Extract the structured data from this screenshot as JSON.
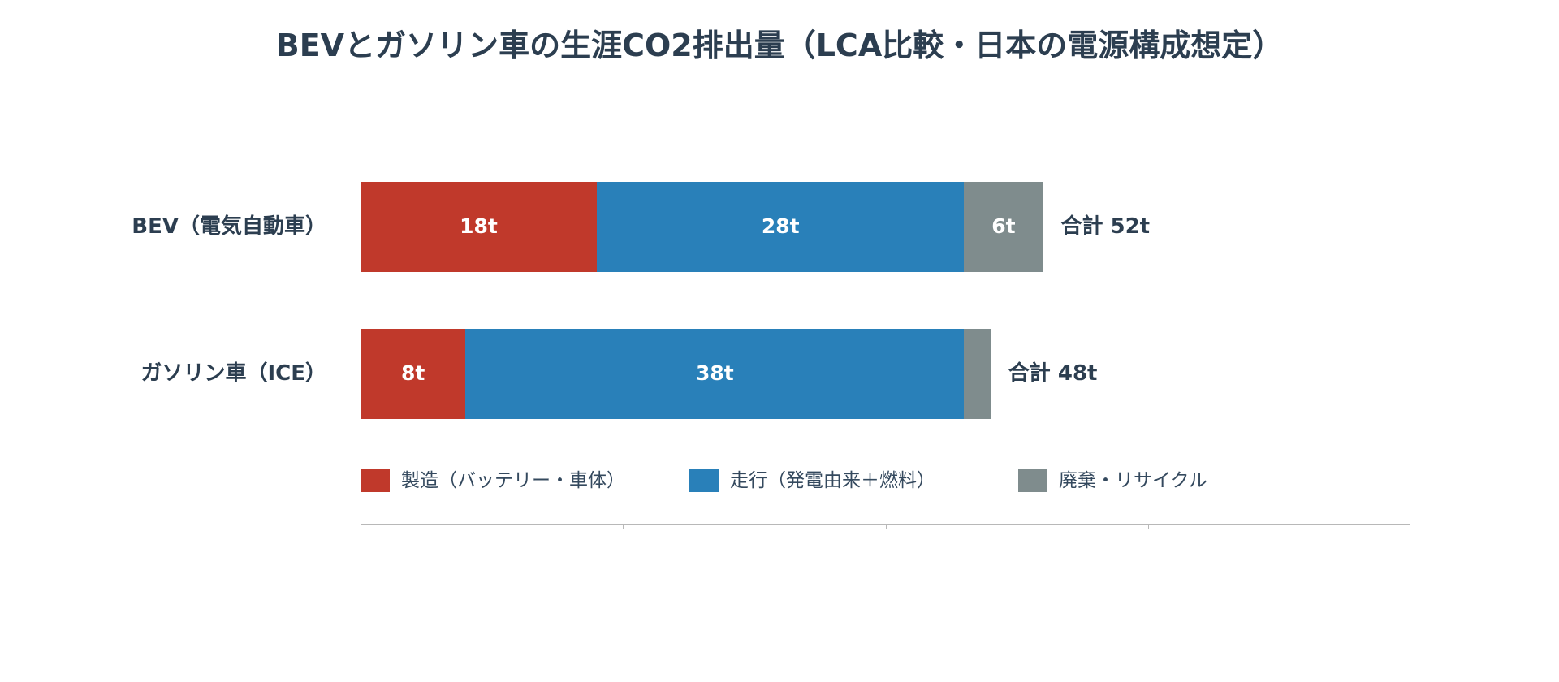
{
  "chart_data": {
    "type": "bar",
    "orientation": "horizontal",
    "stacked": true,
    "title": "BEVとガソリン車の生涯CO2排出量（LCA比較・日本の電源構成想定）",
    "categories": [
      "BEV（電気自動車）",
      "ガソリン車（ICE）"
    ],
    "series": [
      {
        "name": "製造（バッテリー・車体）",
        "values": [
          18,
          8
        ],
        "labels": [
          "18t",
          "8t"
        ],
        "color": "#C0392B"
      },
      {
        "name": "走行（発電由来＋燃料）",
        "values": [
          28,
          38
        ],
        "labels": [
          "28t",
          "38t"
        ],
        "color": "#2980B9"
      },
      {
        "name": "廃棄・リサイクル",
        "values": [
          6,
          2
        ],
        "labels": [
          "6t",
          ""
        ],
        "color": "#7F8C8D"
      }
    ],
    "totals": [
      "合計 52t",
      "合計 48t"
    ],
    "xlim": [
      0,
      80
    ],
    "xticks": [
      0,
      20,
      40,
      60,
      80
    ],
    "xlabel": "",
    "ylabel": "",
    "grid": false,
    "legend": "bottom"
  }
}
